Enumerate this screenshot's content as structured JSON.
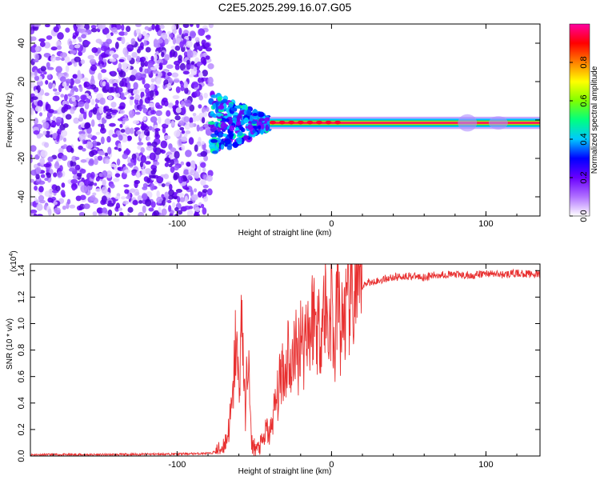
{
  "title": "C2E5.2025.299.16.07.G05",
  "chart_data": [
    {
      "type": "heatmap",
      "name": "spectrogram",
      "xlabel": "Height of straight line (km)",
      "ylabel": "Frequency (Hz)",
      "xlim": [
        -195,
        135
      ],
      "ylim": [
        -50,
        50
      ],
      "xticks": [
        -100,
        0,
        100
      ],
      "yticks": [
        -40,
        -20,
        0,
        20,
        40
      ],
      "colorbar": {
        "label": "Normalized spectral amplitude",
        "range": [
          0.0,
          1.0
        ],
        "ticks": [
          0.0,
          0.2,
          0.4,
          0.6,
          0.8
        ],
        "tick_labels": [
          "0.0",
          "0.2",
          "0.4",
          "0.6",
          "0.8"
        ],
        "colors": [
          "#ffffff",
          "#b070ff",
          "#6a00ff",
          "#0000ff",
          "#00c8ff",
          "#00ff80",
          "#7fff00",
          "#ffff00",
          "#ff8000",
          "#ff0000",
          "#ff00a0"
        ]
      },
      "regions": [
        {
          "description": "noise",
          "x_range": [
            -195,
            -78
          ],
          "freq_range": [
            -50,
            50
          ]
        },
        {
          "description": "transition",
          "x_range": [
            -78,
            -40
          ],
          "freq_range": [
            -12,
            8
          ]
        },
        {
          "description": "carrier line",
          "x_range": [
            -40,
            135
          ],
          "freq": -1.5
        }
      ]
    },
    {
      "type": "line",
      "name": "snr",
      "xlabel": "Height of straight line (km)",
      "ylabel": "SNR (10 * v/v)",
      "y_scale_label": "(x10",
      "y_scale_exp": "4",
      "xlim": [
        -195,
        135
      ],
      "ylim": [
        0,
        1.45
      ],
      "xticks": [
        -100,
        0,
        100
      ],
      "yticks": [
        0.0,
        0.2,
        0.4,
        0.6,
        0.8,
        1.0,
        1.2,
        1.4
      ],
      "ytick_labels": [
        "0.0",
        "0.2",
        "0.4",
        "0.6",
        "0.8",
        "1.0",
        "1.2",
        "1.4"
      ],
      "color": "#e83030",
      "series": [
        {
          "name": "SNR",
          "x": [
            -195,
            -150,
            -100,
            -78,
            -72,
            -68,
            -66,
            -64,
            -62,
            -60,
            -58,
            -56,
            -54,
            -52,
            -50,
            -48,
            -46,
            -44,
            -42,
            -40,
            -38,
            -36,
            -34,
            -32,
            -30,
            -28,
            -26,
            -24,
            -22,
            -20,
            -18,
            -16,
            -14,
            -12,
            -10,
            -8,
            -6,
            -4,
            -2,
            0,
            2,
            4,
            6,
            8,
            10,
            12,
            14,
            16,
            18,
            20,
            22,
            24,
            26,
            28,
            30,
            35,
            40,
            50,
            60,
            70,
            80,
            90,
            100,
            110,
            120,
            135
          ],
          "y": [
            0.01,
            0.01,
            0.015,
            0.02,
            0.05,
            0.12,
            0.25,
            0.4,
            0.9,
            0.5,
            1.1,
            0.3,
            0.8,
            0.1,
            0.07,
            0.05,
            0.08,
            0.12,
            0.2,
            0.15,
            0.3,
            0.4,
            0.5,
            0.7,
            0.6,
            0.85,
            0.55,
            0.9,
            0.7,
            1.0,
            0.8,
            1.05,
            0.9,
            1.1,
            1.0,
            0.95,
            1.05,
            1.15,
            0.9,
            1.2,
            0.7,
            1.3,
            0.9,
            1.1,
            1.05,
            1.2,
            1.15,
            1.25,
            1.2,
            1.28,
            1.3,
            1.32,
            1.3,
            1.33,
            1.32,
            1.34,
            1.35,
            1.36,
            1.35,
            1.37,
            1.37,
            1.36,
            1.38,
            1.37,
            1.38,
            1.37
          ]
        }
      ]
    }
  ]
}
